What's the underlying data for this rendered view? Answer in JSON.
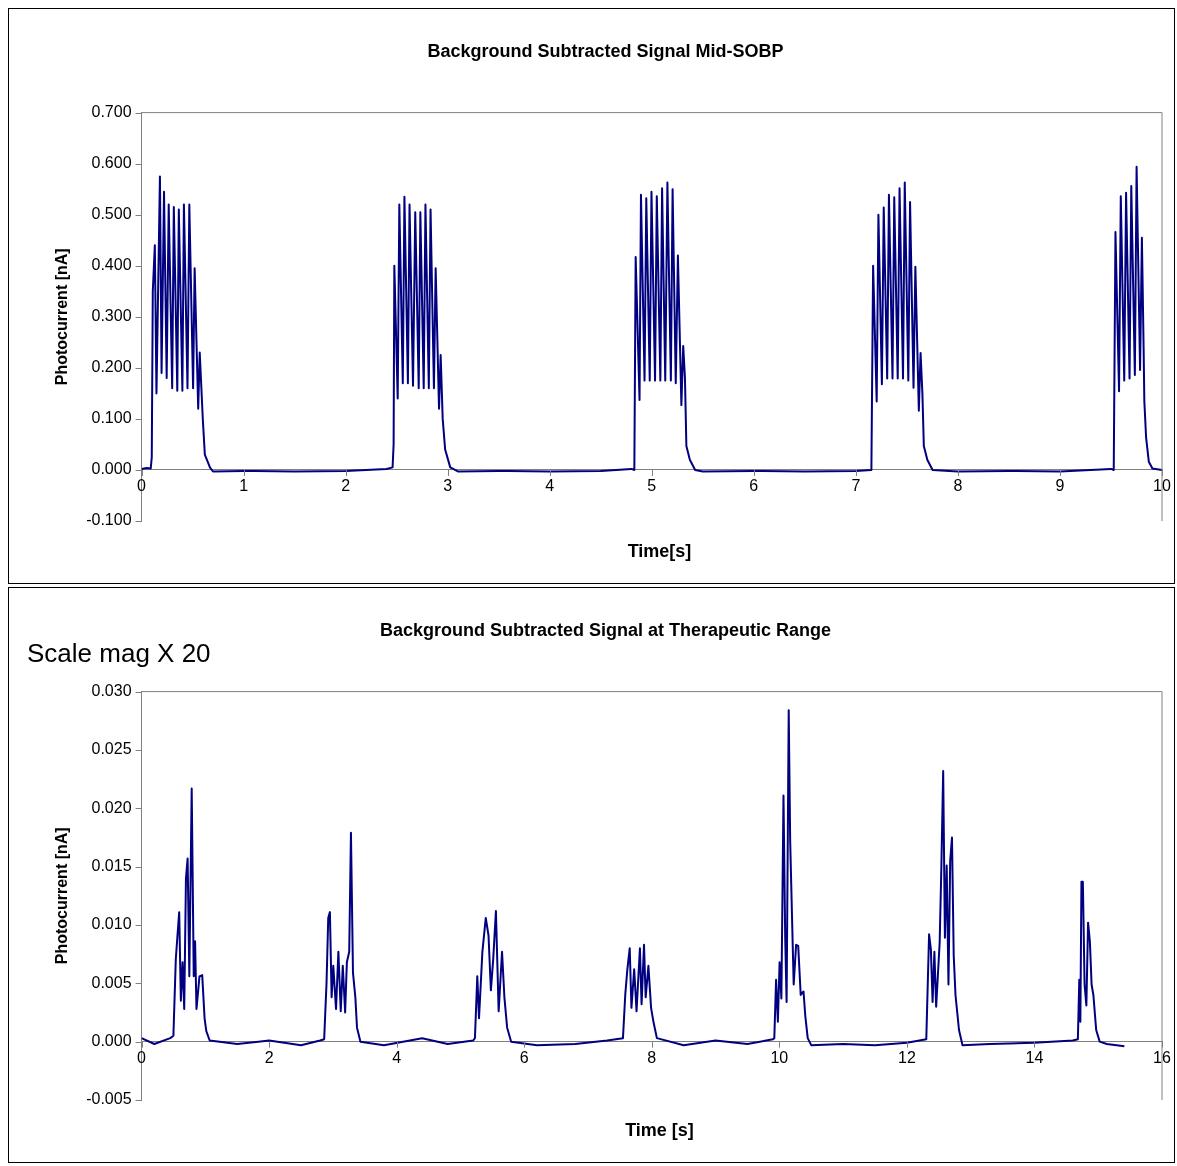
{
  "chart_data": [
    {
      "type": "line",
      "title": "Background Subtracted Signal Mid-SOBP",
      "xlabel": "Time[s]",
      "ylabel": "Photocurrent [nA]",
      "xlim": [
        0,
        10
      ],
      "xticks": [
        0,
        1,
        2,
        3,
        4,
        5,
        6,
        7,
        8,
        9,
        10
      ],
      "ylim": [
        -0.1,
        0.7
      ],
      "yticks": [
        {
          "value": -0.1,
          "label": "-0.100"
        },
        {
          "value": 0,
          "label": "0.000"
        },
        {
          "value": 0.1,
          "label": "0.100"
        },
        {
          "value": 0.2,
          "label": "0.200"
        },
        {
          "value": 0.3,
          "label": "0.300"
        },
        {
          "value": 0.4,
          "label": "0.400"
        },
        {
          "value": 0.5,
          "label": "0.500"
        },
        {
          "value": 0.6,
          "label": "0.600"
        },
        {
          "value": 0.7,
          "label": "0.700"
        }
      ],
      "grid": false,
      "legend": false,
      "marker": "none",
      "line_style": "solid",
      "x": [
        0,
        0.05,
        0.09,
        0.1,
        0.11,
        0.13,
        0.146,
        0.18,
        0.196,
        0.22,
        0.246,
        0.266,
        0.3,
        0.316,
        0.35,
        0.365,
        0.4,
        0.415,
        0.45,
        0.468,
        0.505,
        0.52,
        0.555,
        0.57,
        0.6,
        0.62,
        0.67,
        0.7,
        1.0,
        1.5,
        2.0,
        2.4,
        2.46,
        2.47,
        2.477,
        2.51,
        2.526,
        2.56,
        2.576,
        2.61,
        2.626,
        2.66,
        2.682,
        2.716,
        2.732,
        2.765,
        2.782,
        2.815,
        2.832,
        2.865,
        2.882,
        2.915,
        2.931,
        2.951,
        2.975,
        3.025,
        3.1,
        3.5,
        4.0,
        4.5,
        4.8,
        4.829,
        4.842,
        4.88,
        4.894,
        4.929,
        4.946,
        4.98,
        4.997,
        5.032,
        5.049,
        5.084,
        5.101,
        5.132,
        5.153,
        5.187,
        5.204,
        5.235,
        5.256,
        5.29,
        5.308,
        5.325,
        5.339,
        5.373,
        5.425,
        5.5,
        6.0,
        6.5,
        7.0,
        7.152,
        7.169,
        7.204,
        7.221,
        7.255,
        7.273,
        7.307,
        7.324,
        7.359,
        7.376,
        7.41,
        7.428,
        7.462,
        7.479,
        7.514,
        7.531,
        7.565,
        7.583,
        7.617,
        7.634,
        7.652,
        7.666,
        7.7,
        7.752,
        8.0,
        8.5,
        9.0,
        9.5,
        9.527,
        9.544,
        9.579,
        9.596,
        9.63,
        9.648,
        9.682,
        9.699,
        9.734,
        9.751,
        9.785,
        9.803,
        9.82,
        9.827,
        9.844,
        9.871,
        9.906,
        10.0
      ],
      "series": [
        {
          "color": "#000080",
          "values": [
            0.002,
            0.004,
            0.003,
            0.025,
            0.35,
            0.44,
            0.15,
            0.575,
            0.19,
            0.545,
            0.18,
            0.52,
            0.16,
            0.515,
            0.155,
            0.51,
            0.155,
            0.52,
            0.16,
            0.52,
            0.16,
            0.395,
            0.12,
            0.23,
            0.1,
            0.03,
            0.005,
            -0.003,
            -0.002,
            -0.003,
            -0.002,
            0.002,
            0.005,
            0.05,
            0.4,
            0.14,
            0.52,
            0.17,
            0.535,
            0.17,
            0.52,
            0.165,
            0.505,
            0.16,
            0.505,
            0.16,
            0.52,
            0.16,
            0.51,
            0.16,
            0.395,
            0.12,
            0.225,
            0.1,
            0.04,
            0.005,
            -0.003,
            -0.002,
            -0.003,
            -0.002,
            0.002,
            0.0,
            0.417,
            0.137,
            0.539,
            0.175,
            0.532,
            0.175,
            0.545,
            0.175,
            0.536,
            0.175,
            0.552,
            0.175,
            0.563,
            0.175,
            0.55,
            0.17,
            0.42,
            0.127,
            0.243,
            0.18,
            0.047,
            0.02,
            0.0,
            -0.003,
            -0.002,
            -0.003,
            -0.002,
            0.0,
            0.4,
            0.134,
            0.5,
            0.168,
            0.514,
            0.179,
            0.539,
            0.179,
            0.534,
            0.179,
            0.552,
            0.179,
            0.563,
            0.175,
            0.525,
            0.161,
            0.398,
            0.116,
            0.229,
            0.15,
            0.047,
            0.02,
            0.0,
            -0.003,
            -0.002,
            -0.003,
            0.002,
            0.0,
            0.466,
            0.154,
            0.536,
            0.175,
            0.543,
            0.179,
            0.556,
            0.186,
            0.594,
            0.196,
            0.455,
            0.237,
            0.134,
            0.064,
            0.016,
            0.003,
            0.0
          ]
        }
      ]
    },
    {
      "type": "line",
      "title": "Background Subtracted Signal at Therapeutic Range",
      "xlabel": "Time [s]",
      "ylabel": "Photocurrent [nA]",
      "annotations": [
        "Scale mag X 20"
      ],
      "xlim": [
        0,
        16
      ],
      "xticks": [
        0,
        2,
        4,
        6,
        8,
        10,
        12,
        14,
        16
      ],
      "ylim": [
        -0.005,
        0.03
      ],
      "yticks": [
        {
          "value": -0.005,
          "label": "-0.005"
        },
        {
          "value": 0,
          "label": "0.000"
        },
        {
          "value": 0.005,
          "label": "0.005"
        },
        {
          "value": 0.01,
          "label": "0.010"
        },
        {
          "value": 0.015,
          "label": "0.015"
        },
        {
          "value": 0.02,
          "label": "0.020"
        },
        {
          "value": 0.025,
          "label": "0.025"
        },
        {
          "value": 0.03,
          "label": "0.030"
        }
      ],
      "grid": false,
      "legend": false,
      "marker": "none",
      "line_style": "solid",
      "x": [
        0,
        0.2,
        0.45,
        0.499,
        0.537,
        0.563,
        0.59,
        0.616,
        0.643,
        0.669,
        0.696,
        0.722,
        0.749,
        0.786,
        0.818,
        0.839,
        0.861,
        0.908,
        0.951,
        0.988,
        1.015,
        1.068,
        1.5,
        2.0,
        2.5,
        2.8,
        2.863,
        2.9,
        2.927,
        2.953,
        2.98,
        3.006,
        3.049,
        3.086,
        3.123,
        3.155,
        3.192,
        3.219,
        3.256,
        3.283,
        3.315,
        3.352,
        3.378,
        3.432,
        3.8,
        4.4,
        4.8,
        5.2,
        5.227,
        5.264,
        5.291,
        5.344,
        5.397,
        5.44,
        5.477,
        5.514,
        5.556,
        5.599,
        5.652,
        5.689,
        5.732,
        5.795,
        6.2,
        6.8,
        7.3,
        7.548,
        7.585,
        7.617,
        7.654,
        7.681,
        7.724,
        7.761,
        7.814,
        7.84,
        7.878,
        7.904,
        7.947,
        7.989,
        8.026,
        8.08,
        8.5,
        9.0,
        9.5,
        9.9,
        9.921,
        9.949,
        9.977,
        10.004,
        10.032,
        10.065,
        10.092,
        10.114,
        10.147,
        10.17,
        10.197,
        10.225,
        10.263,
        10.296,
        10.335,
        10.379,
        10.407,
        10.445,
        10.5,
        11.0,
        11.5,
        12.0,
        12.304,
        12.348,
        12.376,
        12.403,
        12.431,
        12.459,
        12.514,
        12.541,
        12.569,
        12.596,
        12.624,
        12.652,
        12.679,
        12.707,
        12.734,
        12.762,
        12.817,
        12.872,
        13.3,
        14.0,
        14.6,
        14.681,
        14.703,
        14.72,
        14.737,
        14.759,
        14.786,
        14.814,
        14.841,
        14.869,
        14.896,
        14.924,
        14.968,
        15.023,
        15.134,
        15.41
      ],
      "series": [
        {
          "color": "#000080",
          "values": [
            0.0003,
            -0.0002,
            0.0003,
            0.0005,
            0.0071,
            0.0091,
            0.0111,
            0.0035,
            0.0068,
            0.0028,
            0.014,
            0.0157,
            0.0056,
            0.0217,
            0.0056,
            0.0086,
            0.0028,
            0.0056,
            0.0057,
            0.002,
            0.0009,
            0.0001,
            -0.0002,
            0.0001,
            -0.0003,
            0.0001,
            0.0002,
            0.005,
            0.0106,
            0.0111,
            0.0038,
            0.0065,
            0.0028,
            0.0077,
            0.0026,
            0.0065,
            0.0025,
            0.0068,
            0.0077,
            0.0179,
            0.0059,
            0.0038,
            0.0012,
            0.0,
            -0.0003,
            0.0003,
            -0.0002,
            0.0001,
            0.0003,
            0.0056,
            0.002,
            0.0077,
            0.0106,
            0.0091,
            0.0044,
            0.0071,
            0.0112,
            0.0026,
            0.0077,
            0.0038,
            0.0012,
            0.0,
            -0.0003,
            -0.0002,
            0.0001,
            0.0003,
            0.0041,
            0.0062,
            0.008,
            0.0029,
            0.0062,
            0.0026,
            0.008,
            0.0032,
            0.0083,
            0.0038,
            0.0065,
            0.0029,
            0.0017,
            0.0003,
            -0.0003,
            0.0001,
            -0.0002,
            0.0002,
            0.0003,
            0.0053,
            0.0017,
            0.0068,
            0.0037,
            0.0211,
            0.0089,
            0.0034,
            0.0284,
            0.0172,
            0.0111,
            0.0049,
            0.0083,
            0.0082,
            0.004,
            0.0043,
            0.0022,
            0.0003,
            -0.0003,
            -0.0002,
            -0.0003,
            -0.0001,
            0.0002,
            0.0092,
            0.0079,
            0.0034,
            0.0077,
            0.003,
            0.0085,
            0.0151,
            0.0232,
            0.0089,
            0.0151,
            0.0049,
            0.0155,
            0.0175,
            0.0074,
            0.004,
            0.001,
            -0.0003,
            -0.0002,
            -0.0001,
            0.0001,
            0.0002,
            0.0053,
            0.0017,
            0.0137,
            0.0137,
            0.0049,
            0.0031,
            0.0102,
            0.0086,
            0.0049,
            0.004,
            0.001,
            0.0,
            -0.0002,
            -0.0004
          ]
        }
      ]
    }
  ]
}
